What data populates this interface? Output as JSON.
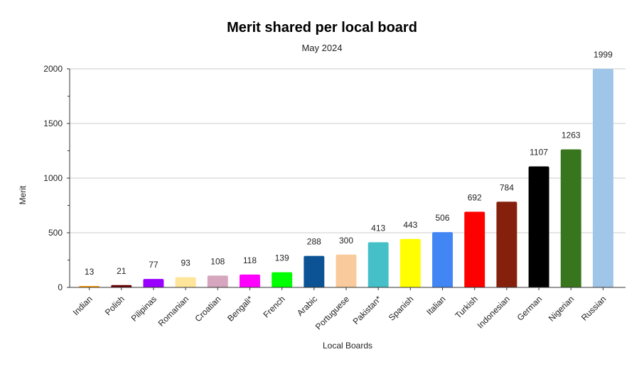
{
  "chart_data": {
    "type": "bar",
    "title": "Merit shared per local board",
    "subtitle": "May 2024",
    "xlabel": "Local Boards",
    "ylabel": "Merit",
    "ylim": [
      0,
      2000
    ],
    "yticks": [
      0,
      500,
      1000,
      1500,
      2000
    ],
    "grid": true,
    "legend": "none",
    "categories": [
      "Indian",
      "Polish",
      "Pilipinas",
      "Romanian",
      "Croatian",
      "Bengali*",
      "French",
      "Arabic",
      "Portuguese",
      "Pakistan*",
      "Spanish",
      "Italian",
      "Turkish",
      "Indonesian",
      "German",
      "Nigerian",
      "Russian"
    ],
    "values": [
      13,
      21,
      77,
      93,
      108,
      118,
      139,
      288,
      300,
      413,
      443,
      506,
      692,
      784,
      1107,
      1263,
      1999
    ],
    "colors": [
      "#ff9900",
      "#660000",
      "#9900ff",
      "#ffe599",
      "#d5a6bd",
      "#ff00ff",
      "#00ff00",
      "#0b5394",
      "#f9cb9c",
      "#45c0c8",
      "#ffff00",
      "#4285f4",
      "#ff0000",
      "#85200c",
      "#000000",
      "#38761d",
      "#9fc5e8"
    ]
  }
}
